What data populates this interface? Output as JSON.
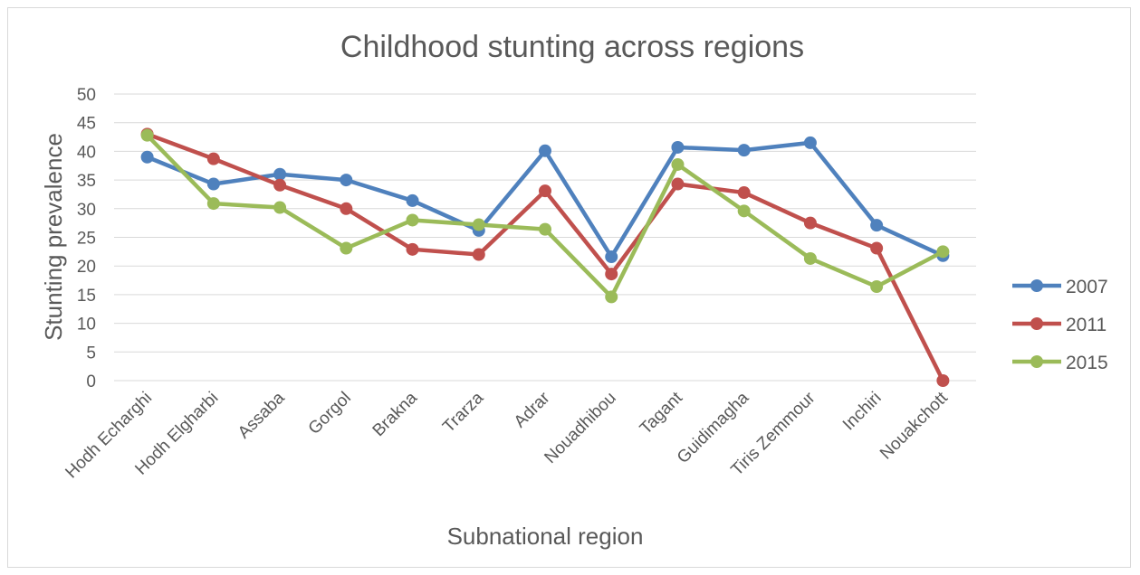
{
  "chart_data": {
    "type": "line",
    "title": "Childhood stunting across regions",
    "xlabel": "Subnational region",
    "ylabel": "Stunting prevalence",
    "ylim": [
      0,
      50
    ],
    "ytick_step": 5,
    "grid": true,
    "legend_position": "right",
    "categories": [
      "Hodh Echarghi",
      "Hodh Elgharbi",
      "Assaba",
      "Gorgol",
      "Brakna",
      "Trarza",
      "Adrar",
      "Nouadhibou",
      "Tagant",
      "Guidimagha",
      "Tiris Zemmour",
      "Inchiri",
      "Nouakchott"
    ],
    "series": [
      {
        "name": "2007",
        "color": "#4f81bd",
        "values": [
          39.0,
          34.3,
          36.0,
          35.0,
          31.4,
          26.2,
          40.1,
          21.6,
          40.7,
          40.2,
          41.5,
          27.1,
          21.8
        ]
      },
      {
        "name": "2011",
        "color": "#c0504d",
        "values": [
          43.0,
          38.7,
          34.1,
          30.0,
          22.9,
          22.0,
          33.1,
          18.6,
          34.3,
          32.8,
          27.5,
          23.1,
          0
        ]
      },
      {
        "name": "2015",
        "color": "#9bbb59",
        "values": [
          42.8,
          30.9,
          30.2,
          23.1,
          28.0,
          27.2,
          26.4,
          14.6,
          37.7,
          29.6,
          21.3,
          16.4,
          22.5
        ]
      }
    ]
  }
}
